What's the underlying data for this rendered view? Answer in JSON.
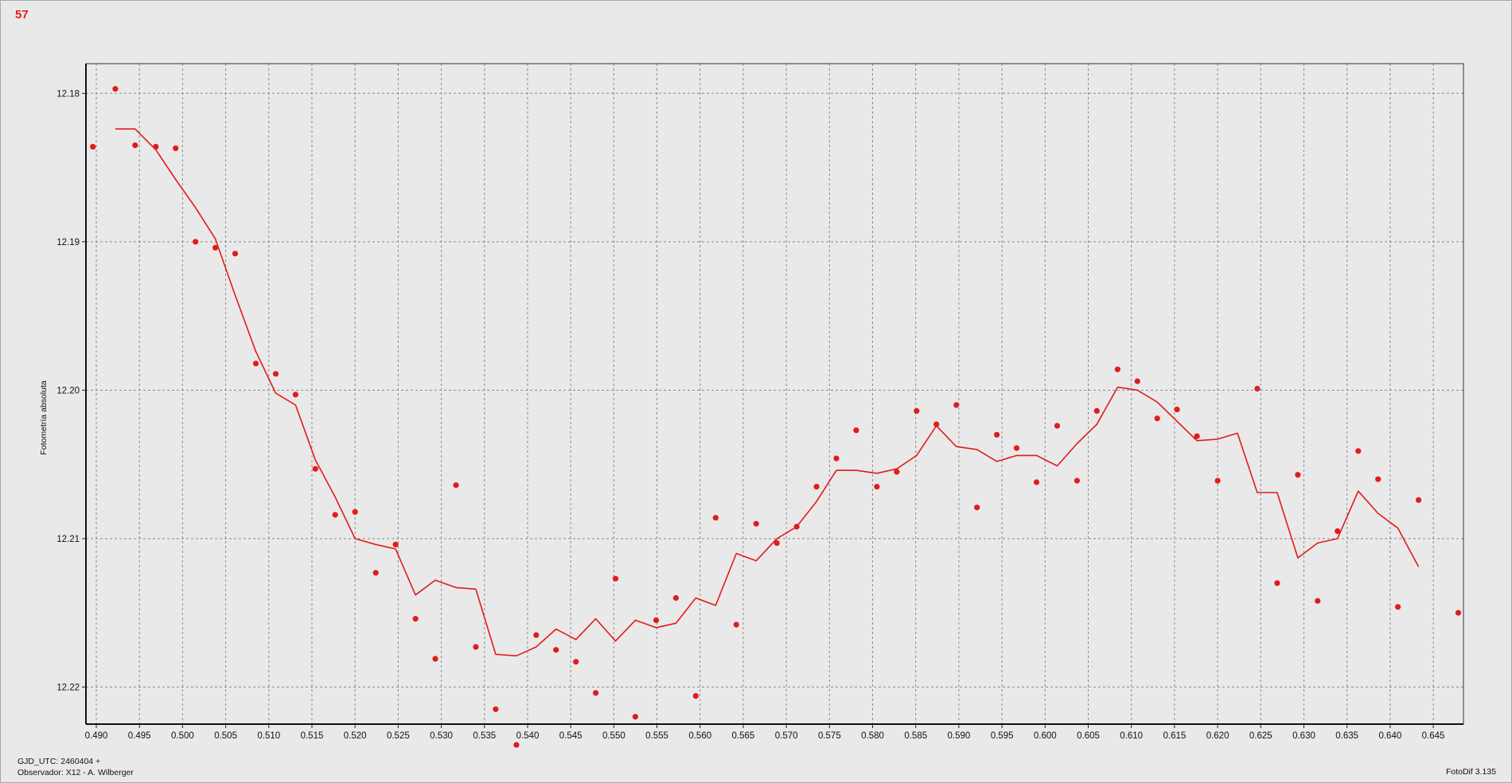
{
  "badge": "57",
  "footer": {
    "line1": "GJD_UTC: 2460404 +",
    "line2": "Observador: X12 - A. Wilberger",
    "version": "FotoDif 3.135"
  },
  "chart_data": {
    "type": "scatter",
    "title": "",
    "xlabel": "",
    "ylabel": "Fotometría absoluta",
    "xlim": [
      0.4888,
      0.6485
    ],
    "ylim": [
      12.178,
      12.2225
    ],
    "y_inverted": true,
    "grid": true,
    "x_ticks": [
      0.49,
      0.495,
      0.5,
      0.505,
      0.51,
      0.515,
      0.52,
      0.525,
      0.53,
      0.535,
      0.54,
      0.545,
      0.55,
      0.555,
      0.56,
      0.565,
      0.57,
      0.575,
      0.58,
      0.585,
      0.59,
      0.595,
      0.6,
      0.605,
      0.61,
      0.615,
      0.62,
      0.625,
      0.63,
      0.635,
      0.64,
      0.645
    ],
    "x_tick_labels": [
      "0.490",
      "0.495",
      "0.500",
      "0.505",
      "0.510",
      "0.515",
      "0.520",
      "0.525",
      "0.530",
      "0.535",
      "0.540",
      "0.545",
      "0.550",
      "0.555",
      "0.560",
      "0.565",
      "0.570",
      "0.575",
      "0.580",
      "0.585",
      "0.590",
      "0.595",
      "0.600",
      "0.605",
      "0.610",
      "0.615",
      "0.620",
      "0.625",
      "0.630",
      "0.635",
      "0.640",
      "0.645"
    ],
    "y_ticks": [
      12.18,
      12.19,
      12.2,
      12.21,
      12.22
    ],
    "y_tick_labels": [
      "12.18",
      "12.19",
      "12.20",
      "12.21",
      "12.22"
    ],
    "color": "#e21b1b",
    "series": [
      {
        "kind": "points",
        "x": [
          0.4896,
          0.4922,
          0.4945,
          0.4969,
          0.4992,
          0.5015,
          0.5038,
          0.5061,
          0.5085,
          0.5108,
          0.5131,
          0.5154,
          0.5177,
          0.52,
          0.5224,
          0.5247,
          0.527,
          0.5293,
          0.5317,
          0.534,
          0.5363,
          0.5387,
          0.541,
          0.5433,
          0.5456,
          0.5479,
          0.5502,
          0.5525,
          0.5549,
          0.5572,
          0.5595,
          0.5618,
          0.5642,
          0.5665,
          0.5689,
          0.5712,
          0.5735,
          0.5758,
          0.5781,
          0.5805,
          0.5828,
          0.5851,
          0.5874,
          0.5897,
          0.5921,
          0.5944,
          0.5967,
          0.599,
          0.6014,
          0.6037,
          0.606,
          0.6084,
          0.6107,
          0.613,
          0.6153,
          0.6176,
          0.62,
          0.6246,
          0.6269,
          0.6293,
          0.6316,
          0.6339,
          0.6363,
          0.6386,
          0.6409,
          0.6433,
          0.6479
        ],
        "y": [
          12.1836,
          12.1797,
          12.1835,
          12.1836,
          12.1837,
          12.19,
          12.1904,
          12.1908,
          12.1982,
          12.1989,
          12.2003,
          12.2053,
          12.2084,
          12.2082,
          12.2123,
          12.2104,
          12.2154,
          12.2181,
          12.2064,
          12.2173,
          12.2215,
          12.2239,
          12.2165,
          12.2175,
          12.2183,
          12.2204,
          12.2127,
          12.222,
          12.2155,
          12.214,
          12.2206,
          12.2086,
          12.2158,
          12.209,
          12.2103,
          12.2092,
          12.2065,
          12.2046,
          12.2027,
          12.2065,
          12.2055,
          12.2014,
          12.2023,
          12.201,
          12.2079,
          12.203,
          12.2039,
          12.2062,
          12.2024,
          12.2061,
          12.2014,
          12.1986,
          12.1994,
          12.2019,
          12.2013,
          12.2031,
          12.2061,
          12.1999,
          12.213,
          12.2057,
          12.2142,
          12.2095,
          12.2041,
          12.206,
          12.2146,
          12.2074,
          12.215
        ]
      },
      {
        "kind": "line",
        "x": [
          0.4922,
          0.4945,
          0.4969,
          0.4992,
          0.5015,
          0.5038,
          0.5061,
          0.5085,
          0.5108,
          0.5131,
          0.5154,
          0.5177,
          0.52,
          0.5224,
          0.5247,
          0.527,
          0.5293,
          0.5317,
          0.534,
          0.5363,
          0.5387,
          0.541,
          0.5433,
          0.5456,
          0.5479,
          0.5502,
          0.5525,
          0.5549,
          0.5572,
          0.5595,
          0.5618,
          0.5642,
          0.5665,
          0.5689,
          0.5712,
          0.5735,
          0.5758,
          0.5781,
          0.5805,
          0.5828,
          0.5851,
          0.5874,
          0.5897,
          0.5921,
          0.5944,
          0.5967,
          0.599,
          0.6014,
          0.6037,
          0.606,
          0.6084,
          0.6107,
          0.613,
          0.6153,
          0.6176,
          0.62,
          0.6223,
          0.6246,
          0.6269,
          0.6293,
          0.6316,
          0.6339,
          0.6363,
          0.6386,
          0.6409,
          0.6433
        ],
        "y": [
          12.1824,
          12.1824,
          12.1838,
          12.1858,
          12.1877,
          12.1898,
          12.1936,
          12.1974,
          12.2002,
          12.201,
          12.2047,
          12.2072,
          12.21,
          12.2104,
          12.2107,
          12.2138,
          12.2128,
          12.2133,
          12.2134,
          12.2178,
          12.2179,
          12.2173,
          12.2161,
          12.2168,
          12.2154,
          12.2169,
          12.2155,
          12.216,
          12.2157,
          12.214,
          12.2145,
          12.211,
          12.2115,
          12.21,
          12.2092,
          12.2075,
          12.2054,
          12.2054,
          12.2056,
          12.2053,
          12.2044,
          12.2024,
          12.2038,
          12.204,
          12.2048,
          12.2044,
          12.2044,
          12.2051,
          12.2036,
          12.2023,
          12.1998,
          12.2,
          12.2008,
          12.2021,
          12.2034,
          12.2033,
          12.2029,
          12.2069,
          12.2069,
          12.2113,
          12.2103,
          12.21,
          12.2068,
          12.2083,
          12.2093,
          12.2119
        ]
      }
    ]
  }
}
